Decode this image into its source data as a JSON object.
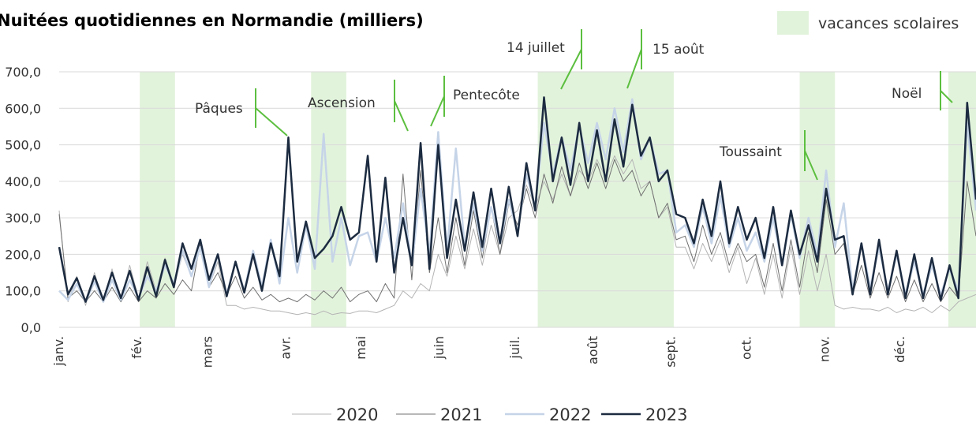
{
  "chart_data": {
    "type": "line",
    "title": "Nuitées quotidiennes en Normandie (milliers)",
    "shading_label": "vacances scolaires",
    "shading_color": "#e2f3dc",
    "shading": [
      [
        32,
        46
      ],
      [
        100,
        114
      ],
      [
        190,
        244
      ],
      [
        294,
        308
      ],
      [
        353,
        364
      ]
    ],
    "annotations": [
      "Pâques",
      "Ascension",
      "Pentecôte",
      "14 juillet",
      "15 août",
      "Toussaint",
      "Noël"
    ],
    "annotation_color": "#5cbf3f",
    "xlim": [
      0,
      364
    ],
    "xticks": [
      {
        "value": 0,
        "label": "janv."
      },
      {
        "value": 31,
        "label": "fév."
      },
      {
        "value": 59,
        "label": "mars"
      },
      {
        "value": 90,
        "label": "avr."
      },
      {
        "value": 120,
        "label": "mai"
      },
      {
        "value": 151,
        "label": "juin"
      },
      {
        "value": 181,
        "label": "juil."
      },
      {
        "value": 212,
        "label": "août"
      },
      {
        "value": 243,
        "label": "sept."
      },
      {
        "value": 273,
        "label": "oct."
      },
      {
        "value": 304,
        "label": "nov."
      },
      {
        "value": 334,
        "label": "déc."
      }
    ],
    "ylim": [
      0,
      700
    ],
    "yticks": [
      {
        "value": 0,
        "label": "0,0"
      },
      {
        "value": 100,
        "label": "100,0"
      },
      {
        "value": 200,
        "label": "200,0"
      },
      {
        "value": 300,
        "label": "300,0"
      },
      {
        "value": 400,
        "label": "400,0"
      },
      {
        "value": 500,
        "label": "500,0"
      },
      {
        "value": 600,
        "label": "600,0"
      },
      {
        "value": 700,
        "label": "700,0"
      }
    ],
    "grid": true,
    "x": [
      0,
      3.5,
      7,
      10.5,
      14,
      17.5,
      21,
      24.5,
      28,
      31.5,
      35,
      38.5,
      42,
      45.5,
      49,
      52.5,
      56,
      59.5,
      63,
      66.5,
      70,
      73.5,
      77,
      80.5,
      84,
      87.5,
      91,
      94.5,
      98,
      101.5,
      105,
      108.5,
      112,
      115.5,
      119,
      122.5,
      126,
      129.5,
      133,
      136.5,
      140,
      143.5,
      147,
      150.5,
      154,
      157.5,
      161,
      164.5,
      168,
      171.5,
      175,
      178.5,
      182,
      185.5,
      189,
      192.5,
      196,
      199.5,
      203,
      206.5,
      210,
      213.5,
      217,
      220.5,
      224,
      227.5,
      231,
      234.5,
      238,
      241.5,
      245,
      248.5,
      252,
      255.5,
      259,
      262.5,
      266,
      269.5,
      273,
      276.5,
      280,
      283.5,
      287,
      290.5,
      294,
      297.5,
      301,
      304.5,
      308,
      311.5,
      315,
      318.5,
      322,
      325.5,
      329,
      332.5,
      336,
      339.5,
      343,
      346.5,
      350,
      353.5,
      357,
      360.5,
      364
    ],
    "series": [
      {
        "name": "2020",
        "color": "#b4b4b4",
        "width": 1,
        "values": [
          320,
          70,
          140,
          60,
          150,
          70,
          160,
          70,
          170,
          80,
          180,
          100,
          190,
          110,
          200,
          140,
          220,
          110,
          180,
          60,
          60,
          50,
          55,
          50,
          45,
          45,
          40,
          35,
          40,
          35,
          45,
          35,
          40,
          38,
          45,
          45,
          40,
          50,
          60,
          100,
          80,
          120,
          100,
          200,
          140,
          250,
          160,
          270,
          170,
          280,
          200,
          300,
          320,
          390,
          330,
          400,
          350,
          420,
          360,
          430,
          400,
          460,
          410,
          470,
          420,
          460,
          380,
          400,
          300,
          330,
          220,
          220,
          160,
          230,
          180,
          240,
          150,
          220,
          120,
          190,
          90,
          200,
          80,
          220,
          90,
          210,
          100,
          200,
          60,
          50,
          55,
          50,
          50,
          45,
          55,
          40,
          50,
          45,
          55,
          40,
          60,
          45,
          70,
          80,
          90
        ]
      },
      {
        "name": "2021",
        "color": "#707070",
        "width": 1,
        "values": [
          310,
          80,
          100,
          70,
          100,
          70,
          110,
          70,
          110,
          70,
          100,
          80,
          120,
          90,
          130,
          100,
          230,
          110,
          150,
          90,
          140,
          80,
          110,
          75,
          90,
          70,
          80,
          70,
          90,
          75,
          100,
          80,
          110,
          70,
          90,
          100,
          70,
          120,
          80,
          420,
          130,
          430,
          150,
          300,
          150,
          300,
          170,
          320,
          190,
          330,
          200,
          340,
          280,
          380,
          300,
          420,
          340,
          440,
          360,
          450,
          380,
          450,
          380,
          460,
          400,
          430,
          360,
          400,
          300,
          340,
          240,
          250,
          180,
          280,
          200,
          260,
          170,
          230,
          180,
          200,
          110,
          230,
          100,
          240,
          110,
          260,
          150,
          350,
          200,
          230,
          90,
          170,
          80,
          150,
          80,
          140,
          70,
          130,
          70,
          120,
          70,
          110,
          80,
          400,
          250
        ]
      },
      {
        "name": "2022",
        "color": "#c6d4e8",
        "width": 2.5,
        "values": [
          100,
          75,
          120,
          70,
          125,
          70,
          130,
          75,
          130,
          80,
          140,
          100,
          170,
          120,
          210,
          140,
          220,
          110,
          200,
          90,
          180,
          100,
          210,
          110,
          240,
          120,
          300,
          150,
          280,
          160,
          530,
          180,
          300,
          170,
          250,
          260,
          180,
          300,
          190,
          340,
          170,
          380,
          200,
          535,
          210,
          490,
          220,
          340,
          210,
          330,
          230,
          350,
          260,
          420,
          330,
          560,
          420,
          520,
          430,
          550,
          450,
          560,
          460,
          600,
          480,
          625,
          460,
          520,
          420,
          430,
          260,
          280,
          220,
          330,
          230,
          360,
          220,
          300,
          210,
          260,
          180,
          300,
          170,
          310,
          190,
          300,
          200,
          430,
          220,
          340,
          100,
          230,
          110,
          220,
          100,
          200,
          90,
          180,
          90,
          170,
          90,
          160,
          100,
          560,
          320
        ]
      },
      {
        "name": "2023",
        "color": "#1c2b40",
        "width": 2.5,
        "values": [
          220,
          90,
          135,
          70,
          140,
          75,
          150,
          80,
          155,
          75,
          165,
          85,
          185,
          110,
          230,
          160,
          240,
          130,
          200,
          85,
          180,
          95,
          200,
          100,
          230,
          140,
          520,
          180,
          290,
          190,
          215,
          250,
          330,
          240,
          260,
          470,
          180,
          410,
          150,
          300,
          170,
          505,
          160,
          500,
          190,
          350,
          210,
          370,
          220,
          380,
          230,
          385,
          250,
          450,
          320,
          630,
          400,
          520,
          390,
          560,
          400,
          540,
          400,
          570,
          440,
          610,
          470,
          520,
          400,
          430,
          310,
          300,
          230,
          350,
          250,
          400,
          230,
          330,
          240,
          300,
          190,
          330,
          170,
          320,
          200,
          280,
          180,
          380,
          240,
          250,
          90,
          230,
          90,
          240,
          90,
          210,
          80,
          200,
          80,
          190,
          75,
          170,
          80,
          615,
          350
        ]
      }
    ]
  }
}
